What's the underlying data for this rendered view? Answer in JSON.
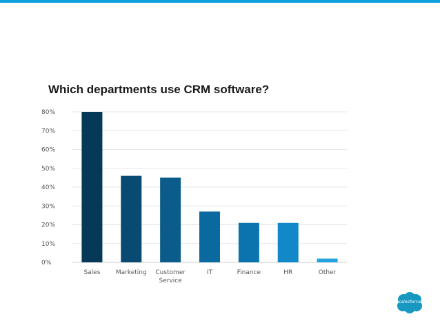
{
  "chart_data": {
    "type": "bar",
    "title": "Which departments use CRM software?",
    "categories": [
      [
        "Sales"
      ],
      [
        "Marketing"
      ],
      [
        "Customer",
        "Service"
      ],
      [
        "IT"
      ],
      [
        "Finance"
      ],
      [
        "HR"
      ],
      [
        "Other"
      ]
    ],
    "values": [
      80,
      46,
      45,
      27,
      21,
      21,
      2
    ],
    "colors": [
      "#053957",
      "#084a72",
      "#0b5c8a",
      "#0a6a9f",
      "#0b74ae",
      "#1388c9",
      "#23a2de"
    ],
    "yticks": [
      "0%",
      "10%",
      "20%",
      "30%",
      "40%",
      "50%",
      "60%",
      "70%",
      "80%"
    ],
    "ylim": [
      0,
      80
    ],
    "xlabel": "",
    "ylabel": "",
    "grid": true
  },
  "brand": {
    "accent_color": "#0fa0de",
    "logo_text": "salesforce",
    "logo_color": "#1798c1"
  }
}
